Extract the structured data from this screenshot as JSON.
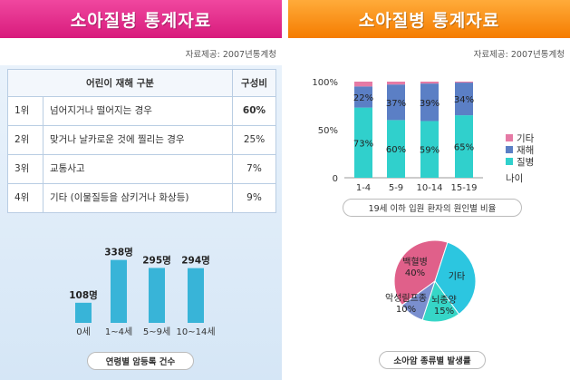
{
  "left": {
    "banner": "소아질병 통계자료",
    "source": "자료제공: 2007년통계청",
    "table": {
      "header_category": "어린이 재해 구분",
      "header_ratio": "구성비",
      "rows": [
        {
          "rank": "1위",
          "desc": "넘어지거나 떨어지는 경우",
          "pct": "60%"
        },
        {
          "rank": "2위",
          "desc": "맞거나 날카로운 것에 찔리는 경우",
          "pct": "25%"
        },
        {
          "rank": "3위",
          "desc": "교통사고",
          "pct": "7%"
        },
        {
          "rank": "4위",
          "desc": "기타 (이물질등을 삼키거나 화상등)",
          "pct": "9%"
        }
      ]
    },
    "caption": "연령별 암등록 건수"
  },
  "right": {
    "banner": "소아질병 통계자료",
    "source": "자료제공: 2007년통계청",
    "bar_caption": "19세 이하 입원 환자의 원인별 비율",
    "pie_caption": "소아암 종류별 발생률",
    "nai_label": "나이"
  },
  "chart_data": [
    {
      "type": "bar",
      "categories": [
        "0세",
        "1~4세",
        "5~9세",
        "10~14세"
      ],
      "values": [
        108,
        338,
        295,
        294
      ],
      "value_labels": [
        "108명",
        "338명",
        "295명",
        "294명"
      ],
      "ylim": [
        0,
        380
      ],
      "color": "#38b4d8",
      "title": "연령별 암등록 건수"
    },
    {
      "type": "bar",
      "stacked": true,
      "categories": [
        "1-4",
        "5-9",
        "10-14",
        "15-19"
      ],
      "series": [
        {
          "name": "질병",
          "values": [
            73,
            60,
            59,
            65
          ],
          "color": "#30d0cc"
        },
        {
          "name": "재해",
          "values": [
            22,
            37,
            39,
            34
          ],
          "color": "#5b7fc5"
        },
        {
          "name": "기타",
          "values": [
            5,
            3,
            2,
            1
          ],
          "color": "#e57aa5"
        }
      ],
      "labels_shown": {
        "질병": [
          "73%",
          "60%",
          "59%",
          "65%"
        ],
        "재해": [
          "22%",
          "37%",
          "39%",
          "34%"
        ]
      },
      "yticks": [
        "0",
        "50%",
        "100%"
      ],
      "ylim": [
        0,
        100
      ],
      "xlabel": "나이",
      "title": "19세 이하 입원 환자의 원인별 비율"
    },
    {
      "type": "pie",
      "slices": [
        {
          "label": "백혈병",
          "value": 40,
          "display": "40%",
          "color": "#e0608a"
        },
        {
          "label": "기타",
          "value": 35,
          "display": "",
          "color": "#2cc6e0"
        },
        {
          "label": "뇌종양",
          "value": 15,
          "display": "15%",
          "color": "#36d6c7"
        },
        {
          "label": "악성림프종",
          "value": 10,
          "display": "10%",
          "color": "#7a8fcf"
        }
      ],
      "title": "소아암 종류별 발생률"
    }
  ]
}
